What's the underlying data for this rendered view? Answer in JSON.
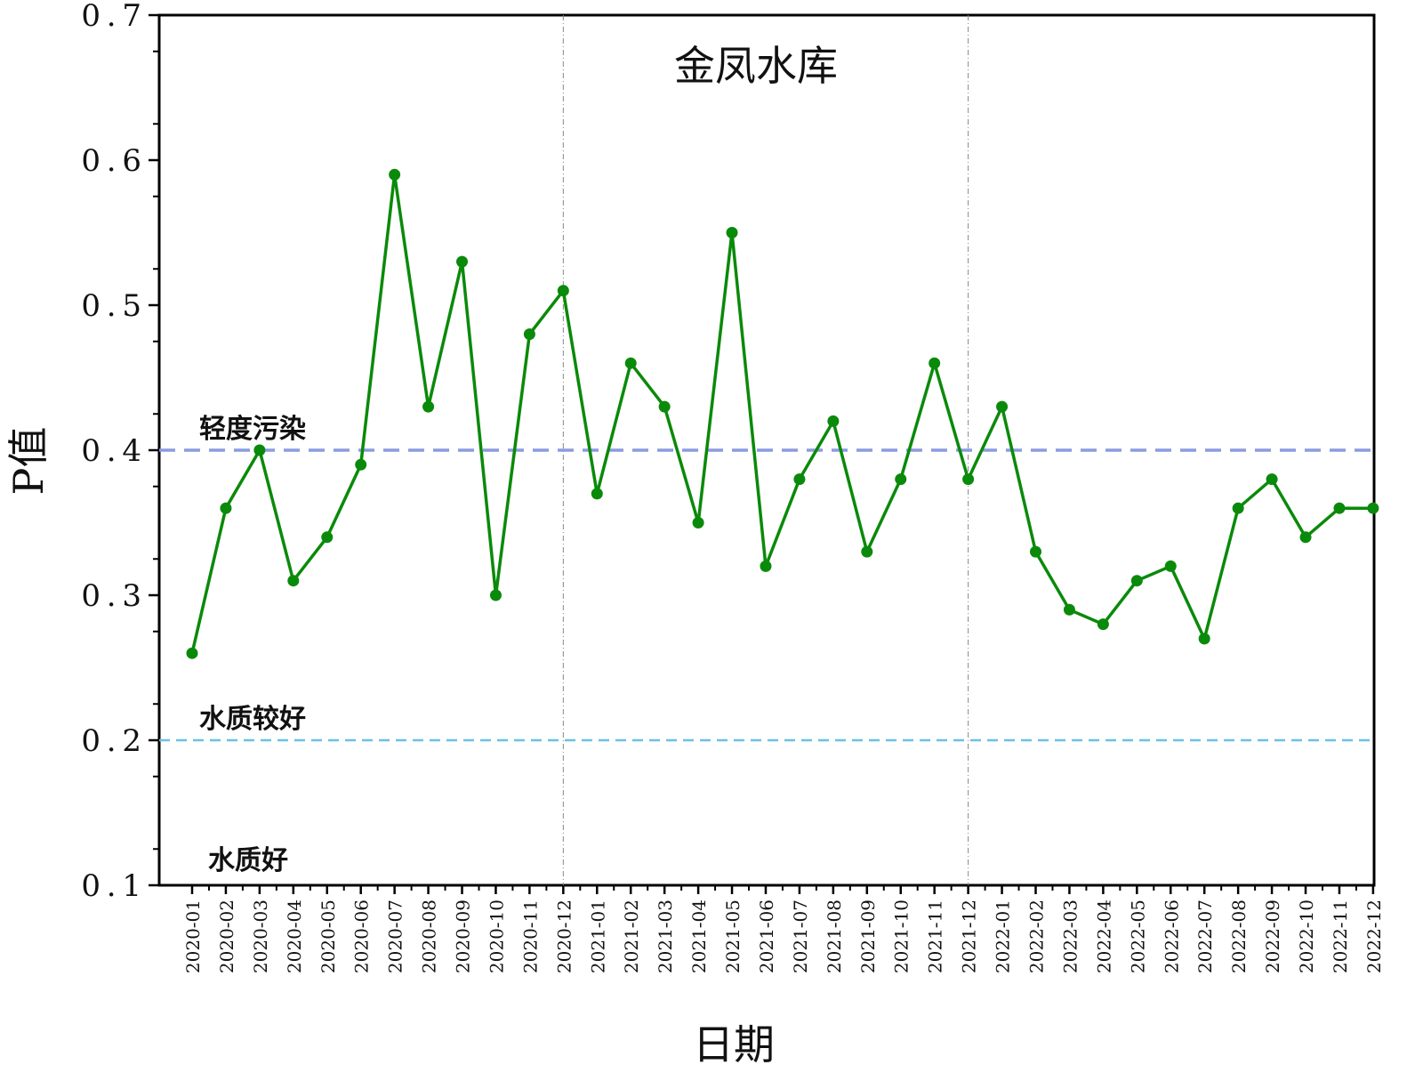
{
  "chart_data": {
    "type": "line",
    "title": "金凤水库",
    "xlabel": "日期",
    "ylabel": "P值",
    "ylim": [
      0.1,
      0.7
    ],
    "yticks": [
      "0.1",
      "0.2",
      "0.3",
      "0.4",
      "0.5",
      "0.6",
      "0.7"
    ],
    "categories": [
      "2020-01",
      "2020-02",
      "2020-03",
      "2020-04",
      "2020-05",
      "2020-06",
      "2020-07",
      "2020-08",
      "2020-09",
      "2020-10",
      "2020-11",
      "2020-12",
      "2021-01",
      "2021-02",
      "2021-03",
      "2021-04",
      "2021-05",
      "2021-06",
      "2021-07",
      "2021-08",
      "2021-09",
      "2021-10",
      "2021-11",
      "2021-12",
      "2022-01",
      "2022-02",
      "2022-03",
      "2022-04",
      "2022-05",
      "2022-06",
      "2022-07",
      "2022-08",
      "2022-09",
      "2022-10",
      "2022-11",
      "2022-12"
    ],
    "series": [
      {
        "color": "#0a8a0a",
        "values": [
          0.26,
          0.36,
          0.4,
          0.31,
          0.34,
          0.39,
          0.59,
          0.43,
          0.53,
          0.3,
          0.48,
          0.51,
          0.37,
          0.46,
          0.43,
          0.35,
          0.55,
          0.32,
          0.38,
          0.42,
          0.33,
          0.38,
          0.46,
          0.38,
          0.43,
          0.33,
          0.29,
          0.28,
          0.31,
          0.32,
          0.27,
          0.36,
          0.38,
          0.34,
          0.36,
          0.36
        ]
      }
    ],
    "reference_lines": [
      {
        "label": "轻度污染",
        "y": 0.4,
        "color": "#8c9be0"
      },
      {
        "label": "水质较好",
        "y": 0.2,
        "color": "#6cc0e6"
      }
    ],
    "zone_labels": [
      {
        "label": "水质好",
        "y": 0.1
      }
    ],
    "year_dividers": [
      "2020-12",
      "2021-12"
    ],
    "grid": false
  }
}
